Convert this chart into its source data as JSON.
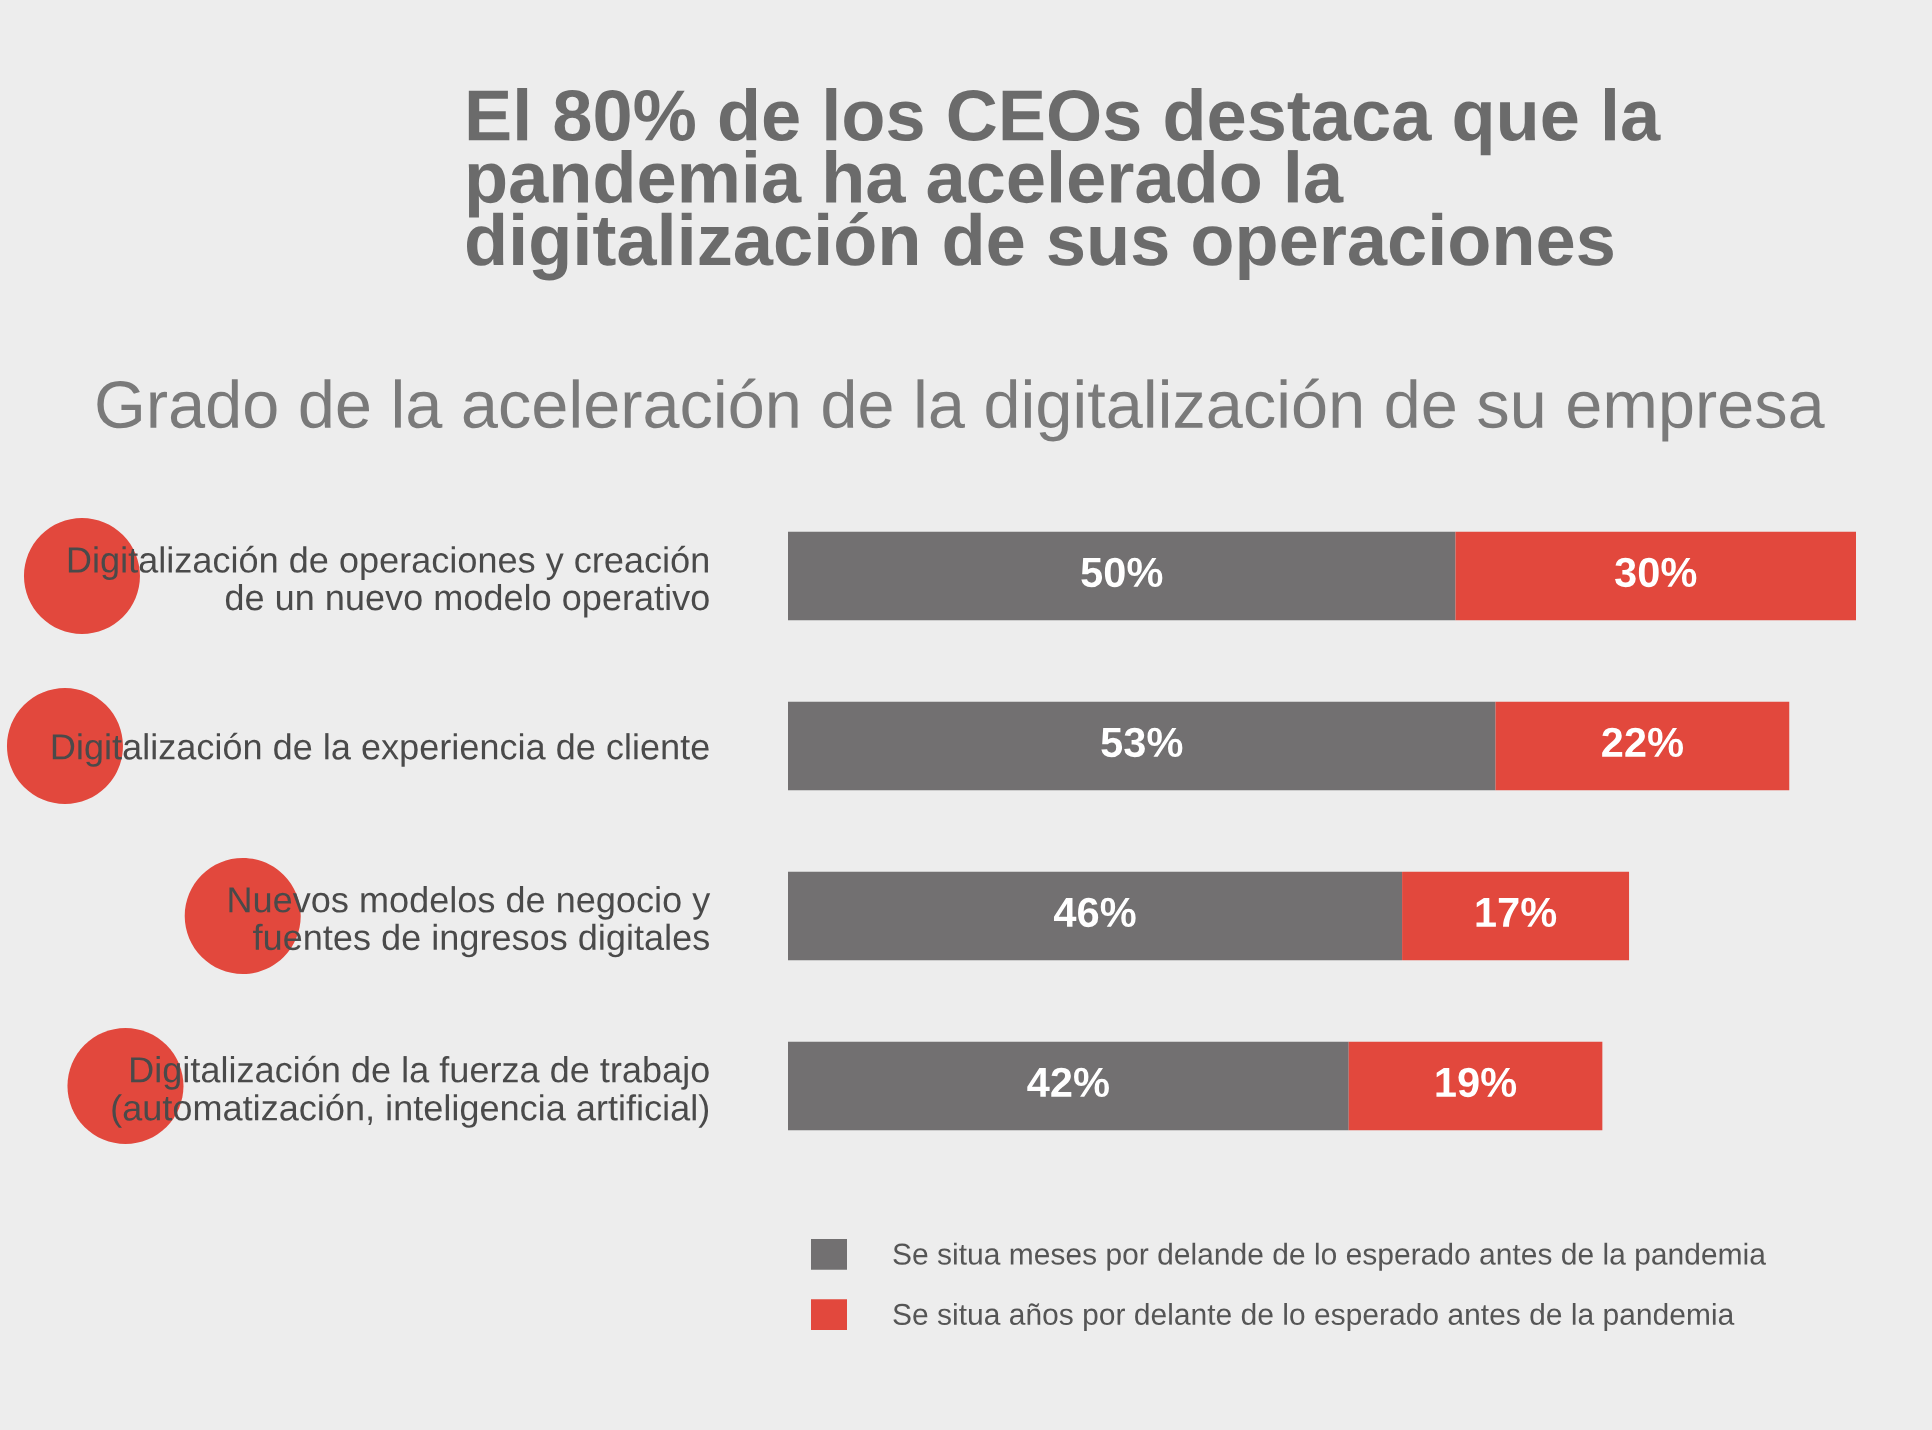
{
  "chart_data": {
    "type": "bar",
    "orientation": "horizontal",
    "stacked": true,
    "title": "El 80% de los CEOs destaca que la\npandemia ha acelerado la\ndigitalización de sus operaciones",
    "subtitle": "Grado de la aceleración de la digitalización de su empresa",
    "categories": [
      "Digitalización de operaciones y creación\nde un nuevo modelo operativo",
      "Digitalización de la experiencia de cliente",
      "Nuevos modelos de negocio y\nfuentes de ingresos digitales",
      "Digitalización de la fuerza de trabajo\n(automatización, inteligencia artificial)"
    ],
    "series": [
      {
        "name": "Se situa meses por delande de lo esperado antes de la pandemia",
        "color": "#727071",
        "values": [
          50,
          53,
          46,
          42
        ],
        "value_labels": [
          "50%",
          "53%",
          "46%",
          "42%"
        ]
      },
      {
        "name": "Se situa años por delante de lo esperado antes de la pandemia",
        "color": "#e2483d",
        "values": [
          30,
          22,
          17,
          19
        ],
        "value_labels": [
          "30%",
          "22%",
          "17%",
          "19%"
        ]
      }
    ],
    "xlim": [
      0,
      80
    ],
    "tick_labels": "y",
    "legend": "bottom"
  }
}
